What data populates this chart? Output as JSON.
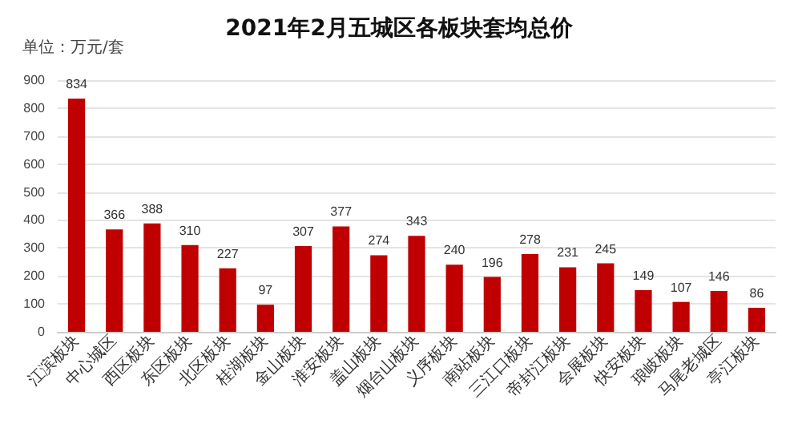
{
  "chart_data": {
    "type": "bar",
    "title": "2021年2月五城区各板块套均总价",
    "ylabel": "单位：万元/套",
    "categories": [
      "江滨板块",
      "中心城区",
      "西区板块",
      "东区板块",
      "北区板块",
      "桂湖板块",
      "金山板块",
      "淮安板块",
      "盖山板块",
      "烟台山板块",
      "义序板块",
      "南站板块",
      "三江口板块",
      "帝封江板块",
      "会展板块",
      "快安板块",
      "琅岐板块",
      "马尾老城区",
      "亭江板块"
    ],
    "values": [
      834,
      366,
      388,
      310,
      227,
      97,
      307,
      377,
      274,
      343,
      240,
      196,
      278,
      231,
      245,
      149,
      107,
      146,
      86
    ],
    "color": "#c00000",
    "ylim": [
      0,
      900
    ],
    "yticks": [
      0,
      100,
      200,
      300,
      400,
      500,
      600,
      700,
      800,
      900
    ],
    "grid": "y",
    "data_labels": true
  }
}
